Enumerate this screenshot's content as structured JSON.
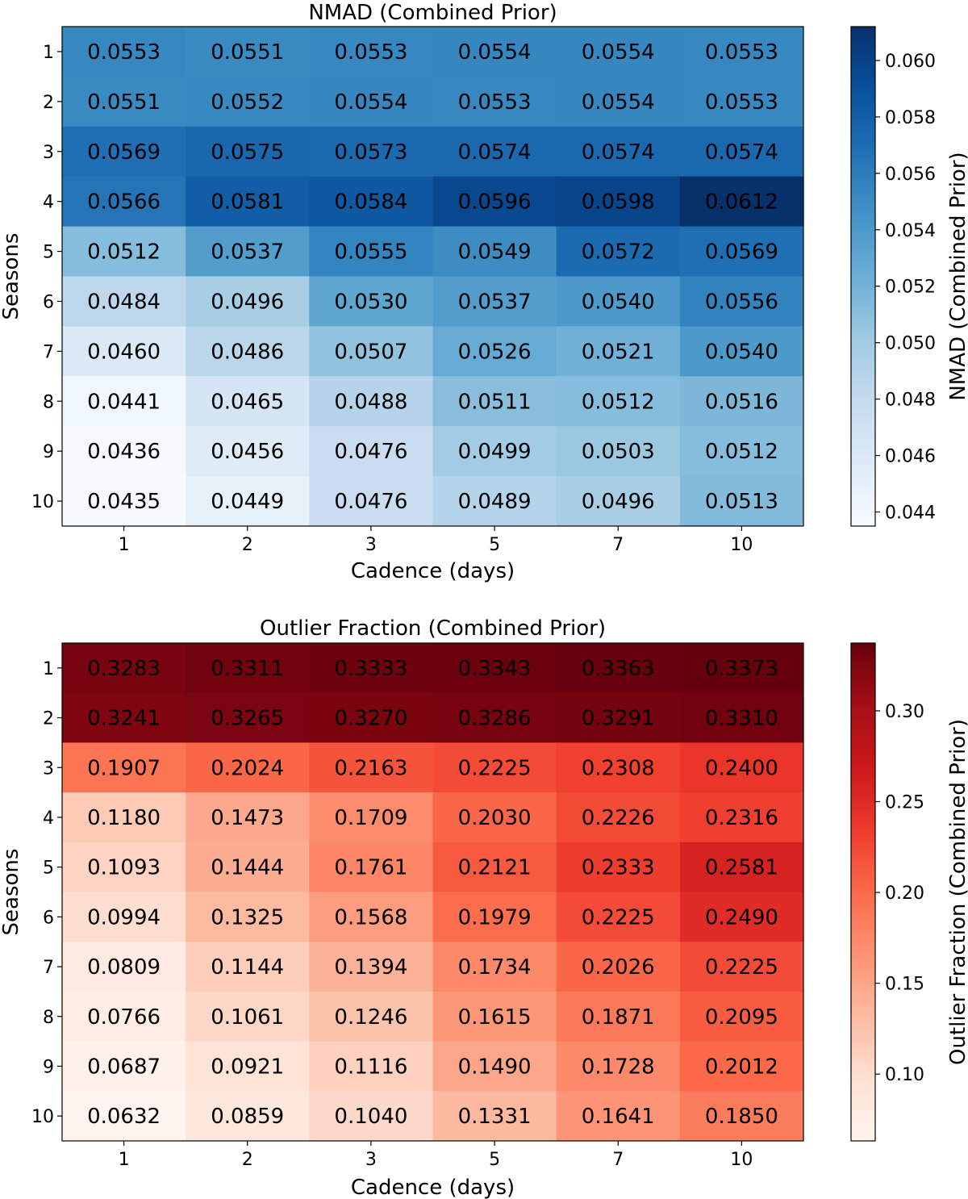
{
  "chart_data": [
    {
      "type": "heatmap",
      "title": "NMAD (Combined Prior)",
      "xlabel": "Cadence (days)",
      "ylabel": "Seasons",
      "colorbar_label": "NMAD (Combined Prior)",
      "colormap": "Blues",
      "x_categories": [
        "1",
        "2",
        "3",
        "5",
        "7",
        "10"
      ],
      "y_categories": [
        "1",
        "2",
        "3",
        "4",
        "5",
        "6",
        "7",
        "8",
        "9",
        "10"
      ],
      "values": [
        [
          0.0553,
          0.0551,
          0.0553,
          0.0554,
          0.0554,
          0.0553
        ],
        [
          0.0551,
          0.0552,
          0.0554,
          0.0553,
          0.0554,
          0.0553
        ],
        [
          0.0569,
          0.0575,
          0.0573,
          0.0574,
          0.0574,
          0.0574
        ],
        [
          0.0566,
          0.0581,
          0.0584,
          0.0596,
          0.0598,
          0.0612
        ],
        [
          0.0512,
          0.0537,
          0.0555,
          0.0549,
          0.0572,
          0.0569
        ],
        [
          0.0484,
          0.0496,
          0.053,
          0.0537,
          0.054,
          0.0556
        ],
        [
          0.046,
          0.0486,
          0.0507,
          0.0526,
          0.0521,
          0.054
        ],
        [
          0.0441,
          0.0465,
          0.0488,
          0.0511,
          0.0512,
          0.0516
        ],
        [
          0.0436,
          0.0456,
          0.0476,
          0.0499,
          0.0503,
          0.0512
        ],
        [
          0.0435,
          0.0449,
          0.0476,
          0.0489,
          0.0496,
          0.0513
        ]
      ],
      "value_labels": [
        [
          "0.0553",
          "0.0551",
          "0.0553",
          "0.0554",
          "0.0554",
          "0.0553"
        ],
        [
          "0.0551",
          "0.0552",
          "0.0554",
          "0.0553",
          "0.0554",
          "0.0553"
        ],
        [
          "0.0569",
          "0.0575",
          "0.0573",
          "0.0574",
          "0.0574",
          "0.0574"
        ],
        [
          "0.0566",
          "0.0581",
          "0.0584",
          "0.0596",
          "0.0598",
          "0.0612"
        ],
        [
          "0.0512",
          "0.0537",
          "0.0555",
          "0.0549",
          "0.0572",
          "0.0569"
        ],
        [
          "0.0484",
          "0.0496",
          "0.0530",
          "0.0537",
          "0.0540",
          "0.0556"
        ],
        [
          "0.0460",
          "0.0486",
          "0.0507",
          "0.0526",
          "0.0521",
          "0.0540"
        ],
        [
          "0.0441",
          "0.0465",
          "0.0488",
          "0.0511",
          "0.0512",
          "0.0516"
        ],
        [
          "0.0436",
          "0.0456",
          "0.0476",
          "0.0499",
          "0.0503",
          "0.0512"
        ],
        [
          "0.0435",
          "0.0449",
          "0.0476",
          "0.0489",
          "0.0496",
          "0.0513"
        ]
      ],
      "vmin": 0.0435,
      "vmax": 0.0612,
      "colorbar_ticks": [
        0.044,
        0.046,
        0.048,
        0.05,
        0.052,
        0.054,
        0.056,
        0.058,
        0.06
      ],
      "colorbar_tick_labels": [
        "0.044",
        "0.046",
        "0.048",
        "0.050",
        "0.052",
        "0.054",
        "0.056",
        "0.058",
        "0.060"
      ]
    },
    {
      "type": "heatmap",
      "title": "Outlier Fraction (Combined Prior)",
      "xlabel": "Cadence (days)",
      "ylabel": "Seasons",
      "colorbar_label": "Outlier Fraction (Combined Prior)",
      "colormap": "Reds",
      "x_categories": [
        "1",
        "2",
        "3",
        "5",
        "7",
        "10"
      ],
      "y_categories": [
        "1",
        "2",
        "3",
        "4",
        "5",
        "6",
        "7",
        "8",
        "9",
        "10"
      ],
      "values": [
        [
          0.3283,
          0.3311,
          0.3333,
          0.3343,
          0.3363,
          0.3373
        ],
        [
          0.3241,
          0.3265,
          0.327,
          0.3286,
          0.3291,
          0.331
        ],
        [
          0.1907,
          0.2024,
          0.2163,
          0.2225,
          0.2308,
          0.24
        ],
        [
          0.118,
          0.1473,
          0.1709,
          0.203,
          0.2226,
          0.2316
        ],
        [
          0.1093,
          0.1444,
          0.1761,
          0.2121,
          0.2333,
          0.2581
        ],
        [
          0.0994,
          0.1325,
          0.1568,
          0.1979,
          0.2225,
          0.249
        ],
        [
          0.0809,
          0.1144,
          0.1394,
          0.1734,
          0.2026,
          0.2225
        ],
        [
          0.0766,
          0.1061,
          0.1246,
          0.1615,
          0.1871,
          0.2095
        ],
        [
          0.0687,
          0.0921,
          0.1116,
          0.149,
          0.1728,
          0.2012
        ],
        [
          0.0632,
          0.0859,
          0.104,
          0.1331,
          0.1641,
          0.185
        ]
      ],
      "value_labels": [
        [
          "0.3283",
          "0.3311",
          "0.3333",
          "0.3343",
          "0.3363",
          "0.3373"
        ],
        [
          "0.3241",
          "0.3265",
          "0.3270",
          "0.3286",
          "0.3291",
          "0.3310"
        ],
        [
          "0.1907",
          "0.2024",
          "0.2163",
          "0.2225",
          "0.2308",
          "0.2400"
        ],
        [
          "0.1180",
          "0.1473",
          "0.1709",
          "0.2030",
          "0.2226",
          "0.2316"
        ],
        [
          "0.1093",
          "0.1444",
          "0.1761",
          "0.2121",
          "0.2333",
          "0.2581"
        ],
        [
          "0.0994",
          "0.1325",
          "0.1568",
          "0.1979",
          "0.2225",
          "0.2490"
        ],
        [
          "0.0809",
          "0.1144",
          "0.1394",
          "0.1734",
          "0.2026",
          "0.2225"
        ],
        [
          "0.0766",
          "0.1061",
          "0.1246",
          "0.1615",
          "0.1871",
          "0.2095"
        ],
        [
          "0.0687",
          "0.0921",
          "0.1116",
          "0.1490",
          "0.1728",
          "0.2012"
        ],
        [
          "0.0632",
          "0.0859",
          "0.1040",
          "0.1331",
          "0.1641",
          "0.1850"
        ]
      ],
      "vmin": 0.0632,
      "vmax": 0.3373,
      "colorbar_ticks": [
        0.1,
        0.15,
        0.2,
        0.25,
        0.3
      ],
      "colorbar_tick_labels": [
        "0.10",
        "0.15",
        "0.20",
        "0.25",
        "0.30"
      ]
    }
  ]
}
